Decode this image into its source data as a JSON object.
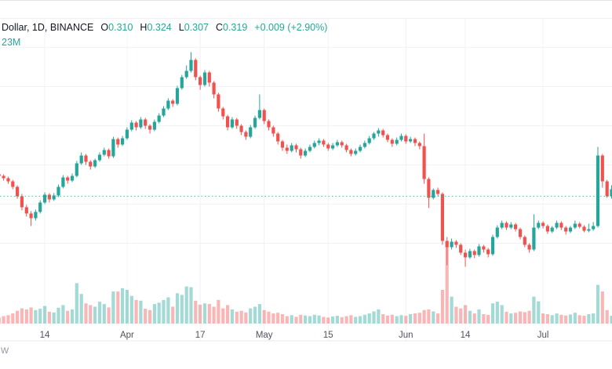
{
  "header": {
    "symbol_text": "Dollar, 1D, BINANCE",
    "o_label": "O",
    "o": "0.310",
    "h_label": "H",
    "h": "0.324",
    "l_label": "L",
    "l": "0.307",
    "c_label": "C",
    "c": "0.319",
    "change": "+0.009 (+2.90%)",
    "volume": "23M"
  },
  "watermark": "w",
  "colors": {
    "up": "#26a69a",
    "down": "#ef5350",
    "vol_up": "rgba(38,166,154,0.42)",
    "vol_down": "rgba(239,83,80,0.42)",
    "grid": "#f0f2f6",
    "axis_border": "#e8eaee",
    "axis_text": "#50535e",
    "prev_close_line": "#26a69a",
    "title_text": "#131722"
  },
  "chart_data": {
    "type": "candlestick",
    "title": "Dollar, 1D, BINANCE daily candles with volume overlay",
    "legend_position": "top-left",
    "grid": true,
    "prev_close_price": 0.31,
    "last_candle": {
      "open": 0.31,
      "high": 0.324,
      "low": 0.307,
      "close": 0.319,
      "change": "+0.009 (+2.90%)",
      "volume_readout": "23M"
    },
    "ylim": [
      0.205,
      0.52
    ],
    "y_gridline_prices": [
      0.25,
      0.3,
      0.35,
      0.4,
      0.45,
      0.5
    ],
    "x_ticks": [
      {
        "label": "14",
        "index": 10
      },
      {
        "label": "Apr",
        "index": 28
      },
      {
        "label": "17",
        "index": 44
      },
      {
        "label": "May",
        "index": 58
      },
      {
        "label": "15",
        "index": 72
      },
      {
        "label": "Jun",
        "index": 89
      },
      {
        "label": "14",
        "index": 102
      },
      {
        "label": "Jul",
        "index": 119
      }
    ],
    "volume_unit": "M",
    "candles_format": [
      "open",
      "high",
      "low",
      "close",
      "volume_m"
    ],
    "candles": [
      [
        0.338,
        0.34,
        0.333,
        0.336,
        18
      ],
      [
        0.336,
        0.338,
        0.33,
        0.333,
        22
      ],
      [
        0.333,
        0.335,
        0.326,
        0.329,
        25
      ],
      [
        0.329,
        0.331,
        0.319,
        0.322,
        30
      ],
      [
        0.322,
        0.324,
        0.307,
        0.31,
        38
      ],
      [
        0.31,
        0.313,
        0.292,
        0.296,
        45
      ],
      [
        0.296,
        0.299,
        0.284,
        0.288,
        42
      ],
      [
        0.288,
        0.291,
        0.272,
        0.282,
        48
      ],
      [
        0.282,
        0.293,
        0.279,
        0.29,
        40
      ],
      [
        0.29,
        0.305,
        0.288,
        0.302,
        44
      ],
      [
        0.302,
        0.315,
        0.3,
        0.312,
        52
      ],
      [
        0.312,
        0.314,
        0.302,
        0.306,
        35
      ],
      [
        0.306,
        0.314,
        0.304,
        0.311,
        33
      ],
      [
        0.311,
        0.325,
        0.309,
        0.322,
        47
      ],
      [
        0.322,
        0.337,
        0.32,
        0.334,
        55
      ],
      [
        0.334,
        0.336,
        0.326,
        0.33,
        38
      ],
      [
        0.33,
        0.339,
        0.328,
        0.336,
        42
      ],
      [
        0.336,
        0.355,
        0.334,
        0.352,
        120
      ],
      [
        0.352,
        0.366,
        0.35,
        0.362,
        88
      ],
      [
        0.362,
        0.364,
        0.35,
        0.354,
        60
      ],
      [
        0.354,
        0.356,
        0.344,
        0.348,
        55
      ],
      [
        0.348,
        0.358,
        0.346,
        0.356,
        50
      ],
      [
        0.356,
        0.366,
        0.354,
        0.363,
        65
      ],
      [
        0.363,
        0.372,
        0.361,
        0.369,
        58
      ],
      [
        0.369,
        0.371,
        0.358,
        0.361,
        48
      ],
      [
        0.361,
        0.386,
        0.359,
        0.383,
        95
      ],
      [
        0.383,
        0.385,
        0.372,
        0.376,
        95
      ],
      [
        0.376,
        0.387,
        0.374,
        0.384,
        105
      ],
      [
        0.384,
        0.398,
        0.382,
        0.395,
        100
      ],
      [
        0.395,
        0.407,
        0.393,
        0.404,
        82
      ],
      [
        0.404,
        0.406,
        0.394,
        0.398,
        70
      ],
      [
        0.398,
        0.411,
        0.396,
        0.408,
        68
      ],
      [
        0.408,
        0.41,
        0.396,
        0.4,
        44
      ],
      [
        0.4,
        0.402,
        0.39,
        0.395,
        40
      ],
      [
        0.395,
        0.408,
        0.393,
        0.405,
        58
      ],
      [
        0.405,
        0.416,
        0.403,
        0.413,
        62
      ],
      [
        0.413,
        0.425,
        0.411,
        0.422,
        70
      ],
      [
        0.422,
        0.435,
        0.42,
        0.432,
        78
      ],
      [
        0.432,
        0.434,
        0.424,
        0.428,
        50
      ],
      [
        0.428,
        0.451,
        0.426,
        0.448,
        90
      ],
      [
        0.448,
        0.465,
        0.446,
        0.462,
        85
      ],
      [
        0.462,
        0.477,
        0.46,
        0.47,
        110
      ],
      [
        0.47,
        0.494,
        0.468,
        0.484,
        108
      ],
      [
        0.484,
        0.486,
        0.458,
        0.462,
        68
      ],
      [
        0.462,
        0.464,
        0.446,
        0.452,
        56
      ],
      [
        0.452,
        0.471,
        0.45,
        0.468,
        60
      ],
      [
        0.468,
        0.47,
        0.45,
        0.455,
        58
      ],
      [
        0.455,
        0.457,
        0.435,
        0.44,
        50
      ],
      [
        0.44,
        0.442,
        0.418,
        0.422,
        70
      ],
      [
        0.422,
        0.424,
        0.408,
        0.412,
        45
      ],
      [
        0.412,
        0.414,
        0.394,
        0.398,
        55
      ],
      [
        0.398,
        0.411,
        0.396,
        0.408,
        42
      ],
      [
        0.408,
        0.41,
        0.396,
        0.4,
        35
      ],
      [
        0.4,
        0.402,
        0.388,
        0.392,
        38
      ],
      [
        0.392,
        0.394,
        0.382,
        0.386,
        33
      ],
      [
        0.386,
        0.401,
        0.384,
        0.398,
        45
      ],
      [
        0.398,
        0.413,
        0.396,
        0.41,
        50
      ],
      [
        0.41,
        0.44,
        0.408,
        0.42,
        58
      ],
      [
        0.42,
        0.422,
        0.402,
        0.406,
        40
      ],
      [
        0.406,
        0.408,
        0.394,
        0.398,
        35
      ],
      [
        0.398,
        0.4,
        0.386,
        0.39,
        30
      ],
      [
        0.39,
        0.392,
        0.376,
        0.38,
        32
      ],
      [
        0.38,
        0.382,
        0.368,
        0.372,
        28
      ],
      [
        0.372,
        0.376,
        0.364,
        0.368,
        22
      ],
      [
        0.368,
        0.378,
        0.366,
        0.375,
        25
      ],
      [
        0.375,
        0.377,
        0.366,
        0.37,
        20
      ],
      [
        0.37,
        0.372,
        0.358,
        0.362,
        26
      ],
      [
        0.362,
        0.371,
        0.36,
        0.368,
        24
      ],
      [
        0.368,
        0.376,
        0.366,
        0.373,
        22
      ],
      [
        0.373,
        0.381,
        0.371,
        0.378,
        26
      ],
      [
        0.378,
        0.384,
        0.375,
        0.381,
        24
      ],
      [
        0.381,
        0.383,
        0.373,
        0.376,
        20
      ],
      [
        0.376,
        0.378,
        0.368,
        0.371,
        18
      ],
      [
        0.371,
        0.378,
        0.369,
        0.375,
        21
      ],
      [
        0.375,
        0.382,
        0.373,
        0.379,
        23
      ],
      [
        0.379,
        0.381,
        0.372,
        0.375,
        19
      ],
      [
        0.375,
        0.377,
        0.366,
        0.369,
        22
      ],
      [
        0.369,
        0.371,
        0.361,
        0.364,
        25
      ],
      [
        0.364,
        0.371,
        0.362,
        0.368,
        20
      ],
      [
        0.368,
        0.376,
        0.366,
        0.373,
        22
      ],
      [
        0.373,
        0.381,
        0.371,
        0.378,
        26
      ],
      [
        0.378,
        0.387,
        0.376,
        0.384,
        30
      ],
      [
        0.384,
        0.392,
        0.382,
        0.39,
        36
      ],
      [
        0.39,
        0.397,
        0.386,
        0.394,
        42
      ],
      [
        0.394,
        0.396,
        0.385,
        0.388,
        28
      ],
      [
        0.388,
        0.39,
        0.379,
        0.382,
        24
      ],
      [
        0.382,
        0.384,
        0.373,
        0.377,
        26
      ],
      [
        0.377,
        0.385,
        0.375,
        0.382,
        22
      ],
      [
        0.382,
        0.39,
        0.38,
        0.387,
        25
      ],
      [
        0.387,
        0.389,
        0.377,
        0.38,
        23
      ],
      [
        0.38,
        0.386,
        0.378,
        0.383,
        28
      ],
      [
        0.383,
        0.385,
        0.374,
        0.378,
        30
      ],
      [
        0.378,
        0.38,
        0.37,
        0.374,
        32
      ],
      [
        0.374,
        0.39,
        0.326,
        0.332,
        40
      ],
      [
        0.332,
        0.334,
        0.295,
        0.308,
        42
      ],
      [
        0.308,
        0.32,
        0.306,
        0.318,
        36
      ],
      [
        0.318,
        0.321,
        0.31,
        0.313,
        30
      ],
      [
        0.313,
        0.315,
        0.248,
        0.253,
        100
      ],
      [
        0.253,
        0.258,
        0.222,
        0.245,
        240
      ],
      [
        0.245,
        0.256,
        0.242,
        0.252,
        80
      ],
      [
        0.252,
        0.254,
        0.244,
        0.248,
        50
      ],
      [
        0.248,
        0.25,
        0.235,
        0.238,
        45
      ],
      [
        0.238,
        0.242,
        0.22,
        0.232,
        55
      ],
      [
        0.232,
        0.243,
        0.23,
        0.24,
        38
      ],
      [
        0.24,
        0.242,
        0.231,
        0.235,
        30
      ],
      [
        0.235,
        0.249,
        0.233,
        0.246,
        42
      ],
      [
        0.246,
        0.248,
        0.238,
        0.242,
        28
      ],
      [
        0.242,
        0.244,
        0.232,
        0.236,
        26
      ],
      [
        0.236,
        0.261,
        0.234,
        0.258,
        60
      ],
      [
        0.258,
        0.273,
        0.256,
        0.27,
        65
      ],
      [
        0.27,
        0.279,
        0.268,
        0.276,
        55
      ],
      [
        0.276,
        0.278,
        0.267,
        0.27,
        35
      ],
      [
        0.27,
        0.277,
        0.268,
        0.274,
        30
      ],
      [
        0.274,
        0.276,
        0.265,
        0.268,
        32
      ],
      [
        0.268,
        0.27,
        0.255,
        0.258,
        36
      ],
      [
        0.258,
        0.26,
        0.245,
        0.248,
        34
      ],
      [
        0.248,
        0.25,
        0.238,
        0.242,
        38
      ],
      [
        0.242,
        0.287,
        0.24,
        0.27,
        80
      ],
      [
        0.27,
        0.279,
        0.268,
        0.276,
        66
      ],
      [
        0.276,
        0.278,
        0.269,
        0.272,
        30
      ],
      [
        0.272,
        0.274,
        0.262,
        0.265,
        28
      ],
      [
        0.265,
        0.272,
        0.263,
        0.27,
        25
      ],
      [
        0.27,
        0.279,
        0.268,
        0.276,
        30
      ],
      [
        0.276,
        0.278,
        0.267,
        0.27,
        26
      ],
      [
        0.27,
        0.272,
        0.261,
        0.265,
        24
      ],
      [
        0.265,
        0.272,
        0.263,
        0.27,
        27
      ],
      [
        0.27,
        0.279,
        0.268,
        0.275,
        32
      ],
      [
        0.275,
        0.277,
        0.269,
        0.271,
        25
      ],
      [
        0.271,
        0.273,
        0.264,
        0.266,
        23
      ],
      [
        0.266,
        0.275,
        0.264,
        0.268,
        28
      ],
      [
        0.268,
        0.277,
        0.266,
        0.272,
        30
      ],
      [
        0.272,
        0.373,
        0.27,
        0.362,
        115
      ],
      [
        0.362,
        0.364,
        0.321,
        0.329,
        95
      ],
      [
        0.329,
        0.331,
        0.308,
        0.31,
        40
      ],
      [
        0.31,
        0.324,
        0.307,
        0.319,
        23
      ]
    ]
  }
}
